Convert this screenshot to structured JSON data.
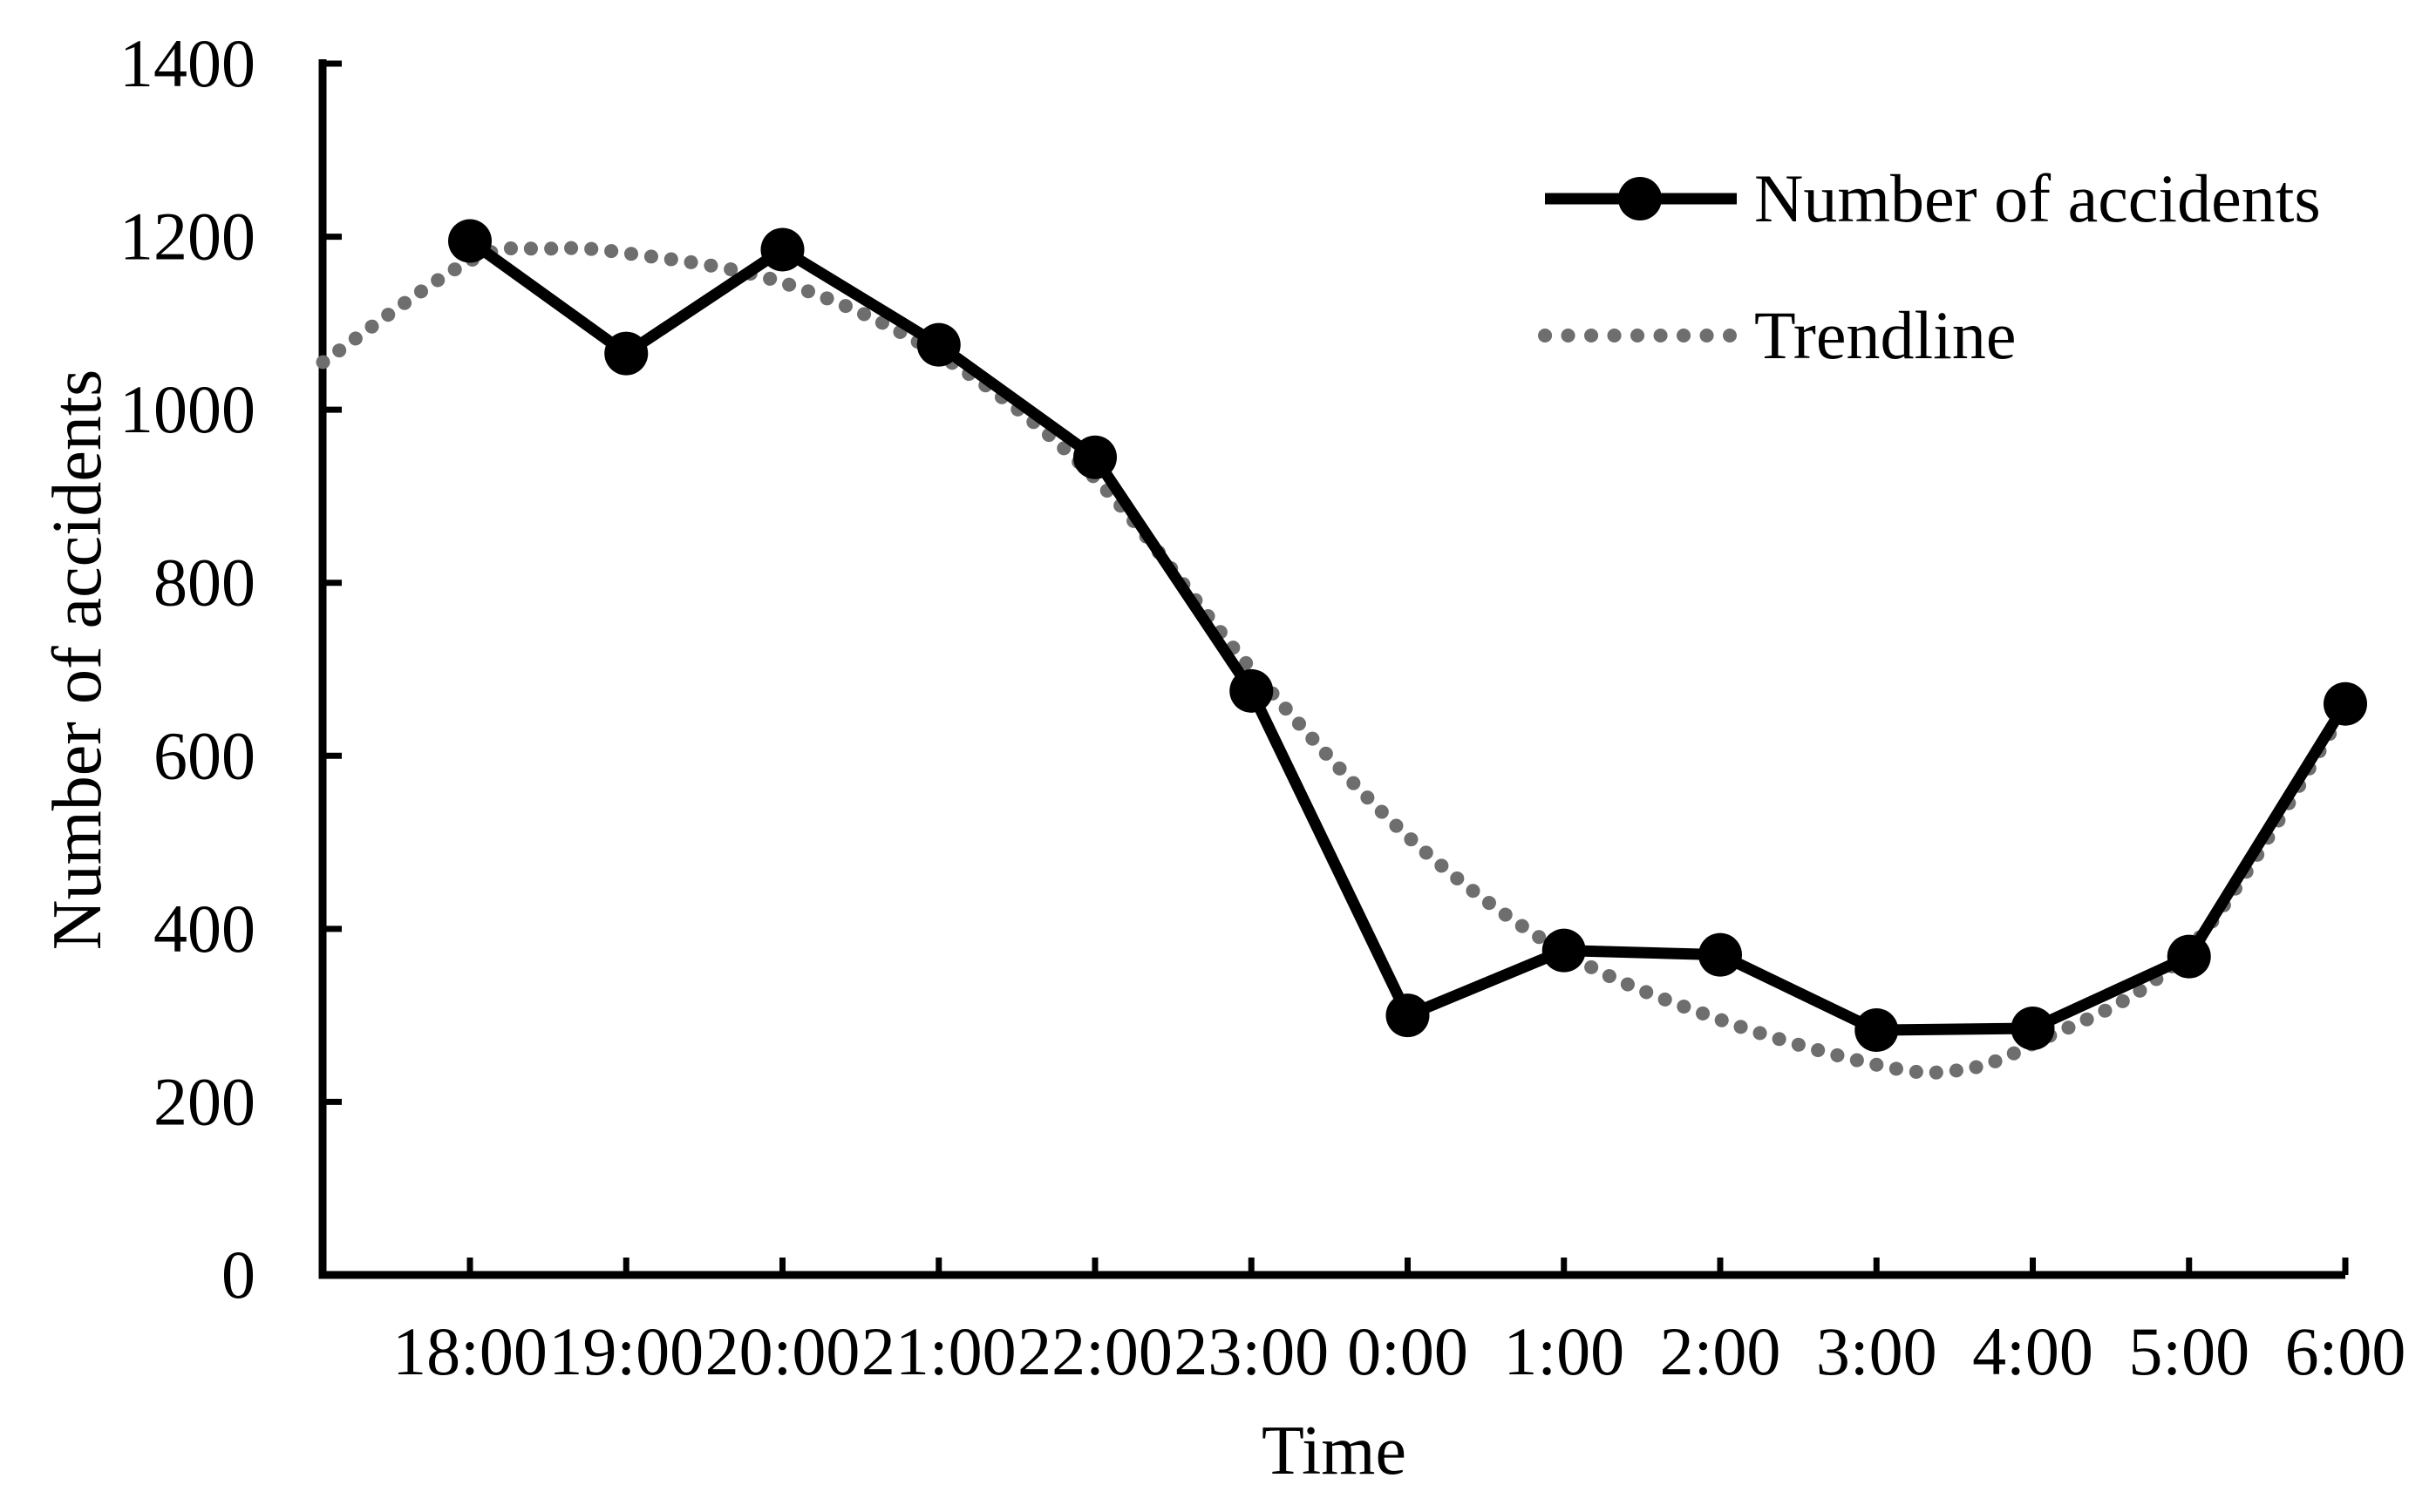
{
  "chart_data": {
    "type": "line",
    "title": "",
    "xlabel": "Time",
    "ylabel": "Number of accidents",
    "categories": [
      "18:00",
      "19:00",
      "20:00",
      "21:00",
      "22:00",
      "23:00",
      "0:00",
      "1:00",
      "2:00",
      "3:00",
      "4:00",
      "5:00",
      "6:00"
    ],
    "ylim": [
      0,
      1400
    ],
    "yticks": [
      0,
      200,
      400,
      600,
      800,
      1000,
      1200,
      1400
    ],
    "grid": false,
    "legend_position": "upper-right",
    "axis_color": "#000000",
    "series": [
      {
        "name": "Number of accidents",
        "type": "line-with-markers",
        "color": "#000000",
        "marker": "filled-circle",
        "values": [
          1195,
          1065,
          1185,
          1075,
          945,
          675,
          300,
          375,
          370,
          283,
          285,
          368,
          660
        ]
      },
      {
        "name": "Trendline",
        "type": "dotted-smooth-curve",
        "color": "#6e6e6e",
        "points": [
          {
            "x": -0.94,
            "y": 1055
          },
          {
            "x": 0,
            "y": 1172
          },
          {
            "x": 0.5,
            "y": 1186
          },
          {
            "x": 1,
            "y": 1181
          },
          {
            "x": 2,
            "y": 1147
          },
          {
            "x": 3,
            "y": 1064
          },
          {
            "x": 4,
            "y": 921
          },
          {
            "x": 5,
            "y": 700
          },
          {
            "x": 6,
            "y": 507
          },
          {
            "x": 7,
            "y": 373
          },
          {
            "x": 8,
            "y": 295
          },
          {
            "x": 9,
            "y": 243
          },
          {
            "x": 9.5,
            "y": 236
          },
          {
            "x": 10,
            "y": 267
          },
          {
            "x": 11,
            "y": 376
          },
          {
            "x": 12,
            "y": 655
          }
        ]
      }
    ]
  }
}
